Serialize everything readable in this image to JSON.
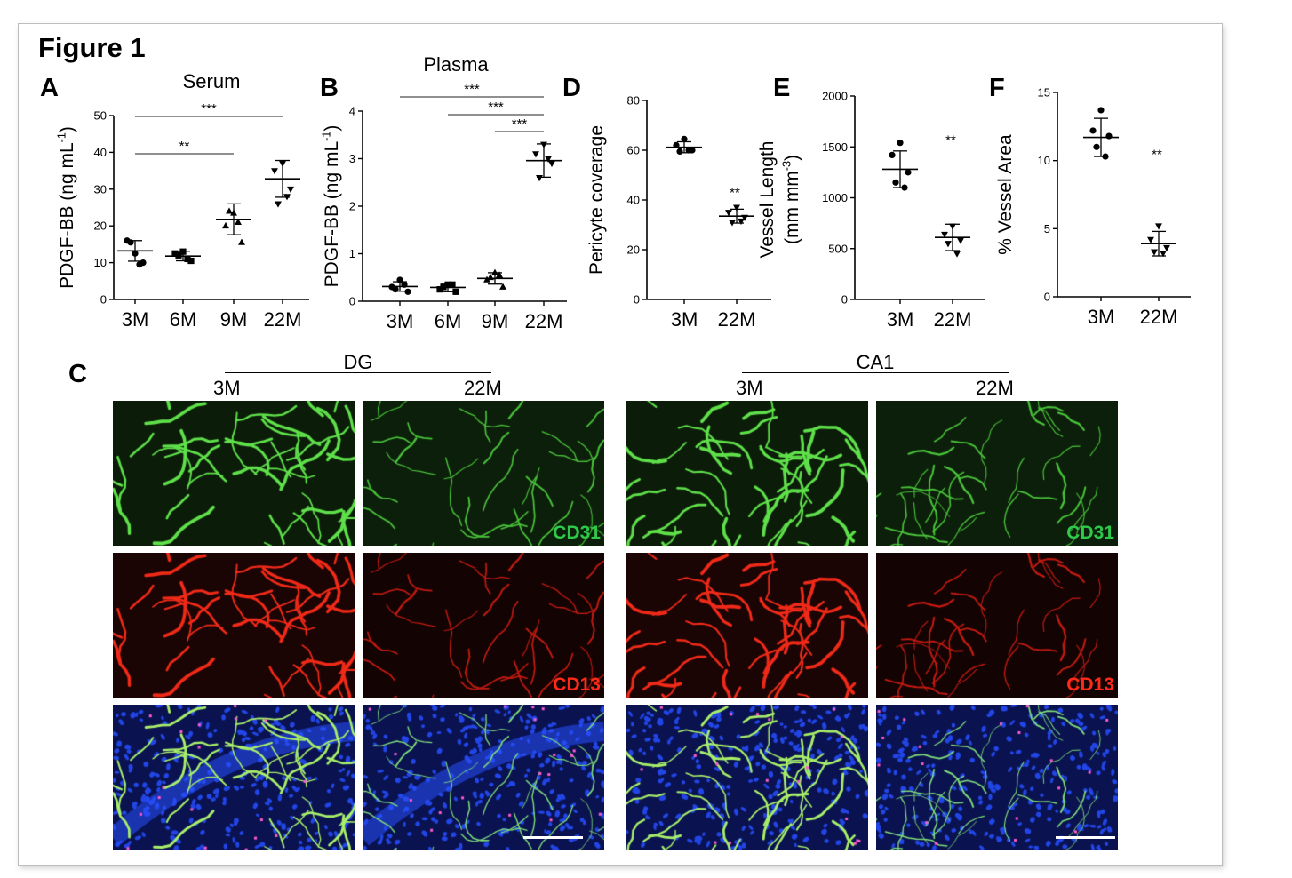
{
  "figure_title": "Figure 1",
  "panel_letters": {
    "A": "A",
    "B": "B",
    "C": "C",
    "D": "D",
    "E": "E",
    "F": "F"
  },
  "panel_C": {
    "groups": [
      {
        "name": "DG",
        "ages": [
          "3M",
          "22M"
        ]
      },
      {
        "name": "CA1",
        "ages": [
          "3M",
          "22M"
        ]
      }
    ],
    "rows": [
      {
        "channel": "CD31",
        "color": "#2ec94a"
      },
      {
        "channel": "CD13",
        "color": "#ff2a1a"
      },
      {
        "channel": "",
        "color": "#1f3fd6"
      }
    ]
  },
  "chart_data": [
    {
      "id": "A",
      "type": "scatter",
      "title": "Serum",
      "ylabel": "PDGF-BB (ng mL-1)",
      "categories": [
        "3M",
        "6M",
        "9M",
        "22M"
      ],
      "ylim": [
        0,
        50
      ],
      "yticks": [
        0,
        10,
        20,
        30,
        40,
        50
      ],
      "points": [
        [
          12.5,
          16,
          10,
          15.5,
          9.5
        ],
        [
          13,
          12.5,
          10.5,
          12,
          11
        ],
        [
          23.5,
          20,
          15.5,
          24,
          21
        ],
        [
          37,
          35,
          30,
          26,
          28
        ]
      ],
      "mean": [
        13.2,
        11.8,
        21.8,
        32.8
      ],
      "sd": [
        2.8,
        1.3,
        4.2,
        5
      ],
      "markers": [
        "circle",
        "square",
        "triangle",
        "triangle-down"
      ],
      "significance": [
        {
          "from": 0,
          "to": 3,
          "label": "***"
        },
        {
          "from": 0,
          "to": 2,
          "label": "**"
        }
      ]
    },
    {
      "id": "B",
      "type": "scatter",
      "title": "Plasma",
      "ylabel": "PDGF-BB (ng mL-1)",
      "categories": [
        "3M",
        "6M",
        "9M",
        "22M"
      ],
      "ylim": [
        0,
        4
      ],
      "yticks": [
        0,
        1,
        2,
        3,
        4
      ],
      "points": [
        [
          0.45,
          0.3,
          0.2,
          0.25,
          0.35
        ],
        [
          0.35,
          0.25,
          0.2,
          0.3,
          0.35
        ],
        [
          0.6,
          0.45,
          0.3,
          0.5,
          0.55
        ],
        [
          3.3,
          3.1,
          2.9,
          2.6,
          3.0
        ]
      ],
      "mean": [
        0.31,
        0.29,
        0.48,
        2.96
      ],
      "sd": [
        0.1,
        0.09,
        0.12,
        0.35
      ],
      "markers": [
        "circle",
        "square",
        "triangle",
        "triangle-down"
      ],
      "significance": [
        {
          "from": 0,
          "to": 3,
          "label": "***"
        },
        {
          "from": 1,
          "to": 3,
          "label": "***"
        },
        {
          "from": 2,
          "to": 3,
          "label": "***"
        }
      ]
    },
    {
      "id": "D",
      "type": "scatter",
      "title": "",
      "ylabel": "Pericyte coverage",
      "categories": [
        "3M",
        "22M"
      ],
      "ylim": [
        0,
        80
      ],
      "yticks": [
        0,
        20,
        40,
        60,
        80
      ],
      "points": [
        [
          64.5,
          62,
          60,
          59.5,
          60
        ],
        [
          37,
          35,
          33,
          31,
          31.5
        ]
      ],
      "mean": [
        61.2,
        33.5
      ],
      "sd": [
        2.2,
        2.8
      ],
      "markers": [
        "circle",
        "triangle-down"
      ],
      "significance": [
        {
          "over": 1,
          "label": "**"
        }
      ]
    },
    {
      "id": "E",
      "type": "scatter",
      "title": "",
      "ylabel": "Vessel Length (mm mm-3)",
      "categories": [
        "3M",
        "22M"
      ],
      "ylim": [
        0,
        2000
      ],
      "yticks": [
        0,
        500,
        1000,
        1500,
        2000
      ],
      "points": [
        [
          1540,
          1420,
          1250,
          1150,
          1100
        ],
        [
          720,
          640,
          580,
          550,
          450
        ]
      ],
      "mean": [
        1280,
        610
      ],
      "sd": [
        180,
        130
      ],
      "markers": [
        "circle",
        "triangle-down"
      ],
      "significance": [
        {
          "over": 1,
          "label": "**"
        }
      ]
    },
    {
      "id": "F",
      "type": "scatter",
      "title": "",
      "ylabel": "% Vessel Area",
      "categories": [
        "3M",
        "22M"
      ],
      "ylim": [
        0,
        15
      ],
      "yticks": [
        0,
        5,
        10,
        15
      ],
      "points": [
        [
          13.7,
          12.2,
          11.8,
          11,
          10.3
        ],
        [
          5.2,
          4.2,
          3.6,
          3.3,
          3.2
        ]
      ],
      "mean": [
        11.7,
        3.9
      ],
      "sd": [
        1.4,
        0.9
      ],
      "markers": [
        "circle",
        "triangle-down"
      ],
      "significance": [
        {
          "over": 1,
          "label": "**"
        }
      ]
    }
  ]
}
